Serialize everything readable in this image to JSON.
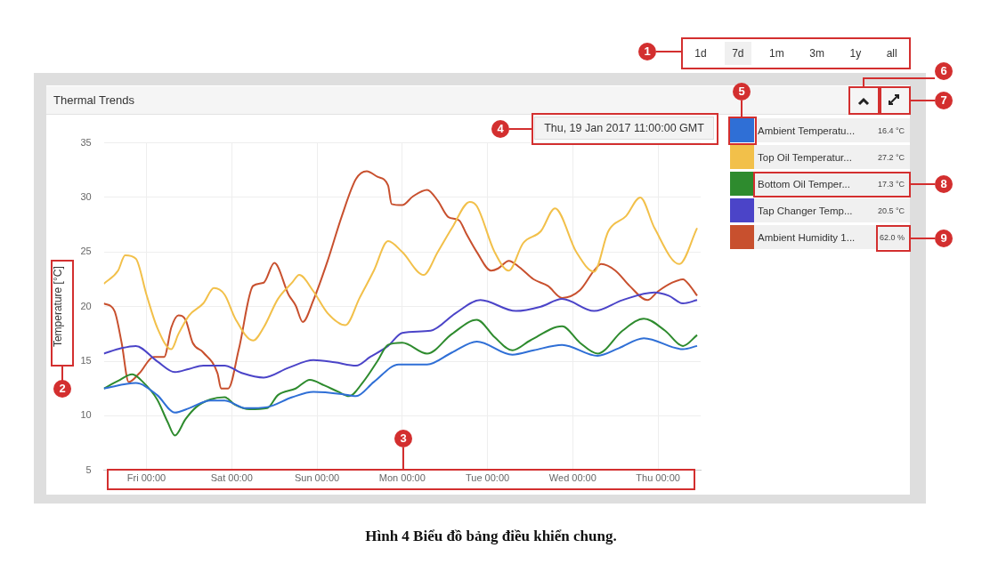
{
  "chart_data": {
    "type": "line",
    "title": "Thermal Trends",
    "ylabel": "Temperature [°C]",
    "xlim": [
      "2017-01-12T12:00",
      "2017-01-19T12:00"
    ],
    "xticks": [
      {
        "value": "2017-01-13T00:00",
        "label": "Fri 00:00"
      },
      {
        "value": "2017-01-14T00:00",
        "label": "Sat 00:00"
      },
      {
        "value": "2017-01-15T00:00",
        "label": "Sun 00:00"
      },
      {
        "value": "2017-01-16T00:00",
        "label": "Mon 00:00"
      },
      {
        "value": "2017-01-17T00:00",
        "label": "Tue 00:00"
      },
      {
        "value": "2017-01-18T00:00",
        "label": "Wed 00:00"
      },
      {
        "value": "2017-01-19T00:00",
        "label": "Thu 00:00"
      }
    ],
    "ylim": [
      5,
      35
    ],
    "yticks": [
      5,
      10,
      15,
      20,
      25,
      30,
      35
    ],
    "grid": true,
    "legend": "right",
    "marker": "none",
    "series": [
      {
        "name": "Ambient Temperatu...",
        "color": "#2f6fd6",
        "x": [
          "2017-01-12T12:00",
          "2017-01-12T21:00",
          "2017-01-13T03:00",
          "2017-01-13T08:00",
          "2017-01-13T12:00",
          "2017-01-13T18:00",
          "2017-01-13T22:00",
          "2017-01-14T04:00",
          "2017-01-14T10:00",
          "2017-01-14T17:00",
          "2017-01-14T23:00",
          "2017-01-15T07:00",
          "2017-01-15T11:00",
          "2017-01-15T16:00",
          "2017-01-15T23:00",
          "2017-01-16T07:00",
          "2017-01-16T14:00",
          "2017-01-16T21:00",
          "2017-01-17T07:00",
          "2017-01-17T13:00",
          "2017-01-17T21:00",
          "2017-01-18T07:00",
          "2017-01-18T13:00",
          "2017-01-18T20:00",
          "2017-01-19T07:00",
          "2017-01-19T11:00"
        ],
        "values": [
          12.5,
          13.0,
          11.9,
          10.3,
          10.7,
          11.4,
          11.4,
          10.7,
          10.8,
          11.7,
          12.2,
          12.0,
          11.8,
          13.1,
          14.7,
          14.7,
          15.8,
          16.8,
          15.6,
          16.0,
          16.5,
          15.5,
          16.2,
          17.1,
          16.1,
          16.4
        ]
      },
      {
        "name": "Top Oil Temperatur...",
        "color": "#f2c04a",
        "x": [
          "2017-01-12T12:00",
          "2017-01-12T16:00",
          "2017-01-12T18:00",
          "2017-01-12T21:00",
          "2017-01-13T00:00",
          "2017-01-13T03:00",
          "2017-01-13T07:00",
          "2017-01-13T09:00",
          "2017-01-13T12:00",
          "2017-01-13T16:00",
          "2017-01-13T19:00",
          "2017-01-13T22:00",
          "2017-01-14T01:00",
          "2017-01-14T06:00",
          "2017-01-14T09:00",
          "2017-01-14T13:00",
          "2017-01-14T17:00",
          "2017-01-14T19:00",
          "2017-01-14T23:00",
          "2017-01-15T03:00",
          "2017-01-15T08:00",
          "2017-01-15T12:00",
          "2017-01-15T16:00",
          "2017-01-15T20:00",
          "2017-01-16T00:00",
          "2017-01-16T06:00",
          "2017-01-16T10:00",
          "2017-01-16T14:00",
          "2017-01-16T19:00",
          "2017-01-16T21:00",
          "2017-01-17T02:00",
          "2017-01-17T06:00",
          "2017-01-17T10:00",
          "2017-01-17T15:00",
          "2017-01-17T19:00",
          "2017-01-18T01:00",
          "2017-01-18T06:00",
          "2017-01-18T10:00",
          "2017-01-18T15:00",
          "2017-01-18T19:00",
          "2017-01-18T23:00",
          "2017-01-19T06:00",
          "2017-01-19T11:00"
        ],
        "values": [
          22.1,
          23.3,
          24.7,
          24.4,
          21.1,
          18.1,
          16.1,
          17.5,
          19.2,
          20.3,
          21.7,
          21.1,
          18.9,
          16.9,
          18.1,
          20.7,
          22.2,
          22.9,
          21.4,
          19.4,
          18.3,
          20.8,
          23.3,
          26.0,
          25.0,
          22.9,
          25.0,
          27.2,
          29.6,
          29.2,
          25.0,
          23.3,
          25.8,
          26.9,
          29.0,
          25.0,
          23.2,
          26.9,
          28.3,
          30.0,
          27.2,
          23.9,
          27.2
        ]
      },
      {
        "name": "Bottom Oil Temper...",
        "color": "#2e8b2e",
        "x": [
          "2017-01-12T12:00",
          "2017-01-12T16:00",
          "2017-01-12T20:00",
          "2017-01-12T23:00",
          "2017-01-13T03:00",
          "2017-01-13T06:00",
          "2017-01-13T08:00",
          "2017-01-13T11:00",
          "2017-01-13T14:00",
          "2017-01-13T18:00",
          "2017-01-13T22:00",
          "2017-01-14T01:00",
          "2017-01-14T05:00",
          "2017-01-14T10:00",
          "2017-01-14T13:00",
          "2017-01-14T18:00",
          "2017-01-14T22:00",
          "2017-01-15T02:00",
          "2017-01-15T06:00",
          "2017-01-15T09:00",
          "2017-01-15T13:00",
          "2017-01-15T17:00",
          "2017-01-15T20:00",
          "2017-01-16T00:00",
          "2017-01-16T07:00",
          "2017-01-16T14:00",
          "2017-01-16T21:00",
          "2017-01-17T02:00",
          "2017-01-17T07:00",
          "2017-01-17T12:00",
          "2017-01-17T21:00",
          "2017-01-18T02:00",
          "2017-01-18T07:00",
          "2017-01-18T14:00",
          "2017-01-18T20:00",
          "2017-01-19T02:00",
          "2017-01-19T07:00",
          "2017-01-19T11:00"
        ],
        "values": [
          12.5,
          13.2,
          13.8,
          13.1,
          11.5,
          9.4,
          8.2,
          9.7,
          10.8,
          11.5,
          11.7,
          11.0,
          10.6,
          10.7,
          11.9,
          12.5,
          13.3,
          12.8,
          12.2,
          11.8,
          13.1,
          15.0,
          16.5,
          16.7,
          15.7,
          17.5,
          18.8,
          17.2,
          16.0,
          16.9,
          18.2,
          16.7,
          15.7,
          17.8,
          18.9,
          17.8,
          16.4,
          17.4
        ]
      },
      {
        "name": "Tap Changer Temp...",
        "color": "#4b44c8",
        "x": [
          "2017-01-12T12:00",
          "2017-01-12T17:00",
          "2017-01-12T21:00",
          "2017-01-13T03:00",
          "2017-01-13T08:00",
          "2017-01-13T12:00",
          "2017-01-13T16:00",
          "2017-01-13T22:00",
          "2017-01-14T03:00",
          "2017-01-14T09:00",
          "2017-01-14T16:00",
          "2017-01-14T23:00",
          "2017-01-15T05:00",
          "2017-01-15T11:00",
          "2017-01-15T15:00",
          "2017-01-15T20:00",
          "2017-01-16T00:00",
          "2017-01-16T08:00",
          "2017-01-16T15:00",
          "2017-01-16T22:00",
          "2017-01-17T08:00",
          "2017-01-17T15:00",
          "2017-01-17T21:00",
          "2017-01-18T06:00",
          "2017-01-18T14:00",
          "2017-01-18T23:00",
          "2017-01-19T03:00",
          "2017-01-19T07:00",
          "2017-01-19T11:00"
        ],
        "values": [
          15.7,
          16.2,
          16.4,
          15.0,
          14.0,
          14.3,
          14.6,
          14.6,
          13.9,
          13.5,
          14.4,
          15.1,
          14.9,
          14.6,
          15.4,
          16.4,
          17.6,
          17.8,
          19.4,
          20.6,
          19.6,
          20.0,
          20.7,
          19.6,
          20.6,
          21.3,
          21.0,
          20.3,
          20.6
        ]
      },
      {
        "name": "Ambient Humidity 1...",
        "color": "#c8502e",
        "x": [
          "2017-01-12T12:00",
          "2017-01-12T15:00",
          "2017-01-12T17:00",
          "2017-01-12T19:00",
          "2017-01-12T22:00",
          "2017-01-13T02:00",
          "2017-01-13T05:00",
          "2017-01-13T07:00",
          "2017-01-13T09:00",
          "2017-01-13T11:00",
          "2017-01-13T13:00",
          "2017-01-13T16:00",
          "2017-01-13T20:00",
          "2017-01-13T21:00",
          "2017-01-13T23:00",
          "2017-01-14T02:00",
          "2017-01-14T06:00",
          "2017-01-14T09:00",
          "2017-01-14T12:00",
          "2017-01-14T16:00",
          "2017-01-14T18:00",
          "2017-01-14T20:00",
          "2017-01-14T23:00",
          "2017-01-15T03:00",
          "2017-01-15T07:00",
          "2017-01-15T11:00",
          "2017-01-15T14:00",
          "2017-01-15T17:00",
          "2017-01-15T20:00",
          "2017-01-15T21:00",
          "2017-01-16T00:00",
          "2017-01-16T03:00",
          "2017-01-16T07:00",
          "2017-01-16T10:00",
          "2017-01-16T13:00",
          "2017-01-16T16:00",
          "2017-01-16T18:00",
          "2017-01-16T21:00",
          "2017-01-17T01:00",
          "2017-01-17T03:00",
          "2017-01-17T06:00",
          "2017-01-17T09:00",
          "2017-01-17T13:00",
          "2017-01-17T17:00",
          "2017-01-17T21:00",
          "2017-01-18T02:00",
          "2017-01-18T06:00",
          "2017-01-18T08:00",
          "2017-01-18T12:00",
          "2017-01-18T16:00",
          "2017-01-18T21:00",
          "2017-01-19T00:00",
          "2017-01-19T04:00",
          "2017-01-19T07:00",
          "2017-01-19T09:00",
          "2017-01-19T11:00"
        ],
        "values": [
          20.3,
          19.6,
          16.7,
          13.1,
          13.9,
          15.4,
          15.4,
          18.1,
          19.2,
          18.8,
          16.7,
          15.8,
          13.9,
          12.5,
          12.5,
          16.1,
          21.9,
          22.2,
          24.0,
          21.1,
          20.1,
          18.6,
          20.6,
          24.2,
          28.3,
          31.7,
          32.4,
          31.9,
          31.1,
          29.4,
          29.3,
          30.1,
          30.7,
          29.7,
          28.2,
          27.9,
          26.7,
          25.0,
          23.3,
          23.5,
          24.2,
          23.6,
          22.5,
          21.9,
          20.8,
          21.5,
          23.3,
          23.9,
          23.3,
          21.9,
          20.6,
          21.4,
          22.2,
          22.5,
          21.9,
          21.0
        ]
      }
    ],
    "annotations": [
      "1d",
      "7d",
      "1m",
      "3m",
      "1y",
      "all",
      "Thu, 19 Jan 2017 11:00:00 GMT",
      "16.4 °C",
      "27.2 °C",
      "17.3 °C",
      "20.5 °C",
      "62.0 %",
      "1",
      "2",
      "3",
      "4",
      "5",
      "6",
      "7",
      "8",
      "9",
      "Hình 4 Biểu đồ bảng điều khiển chung."
    ]
  }
}
